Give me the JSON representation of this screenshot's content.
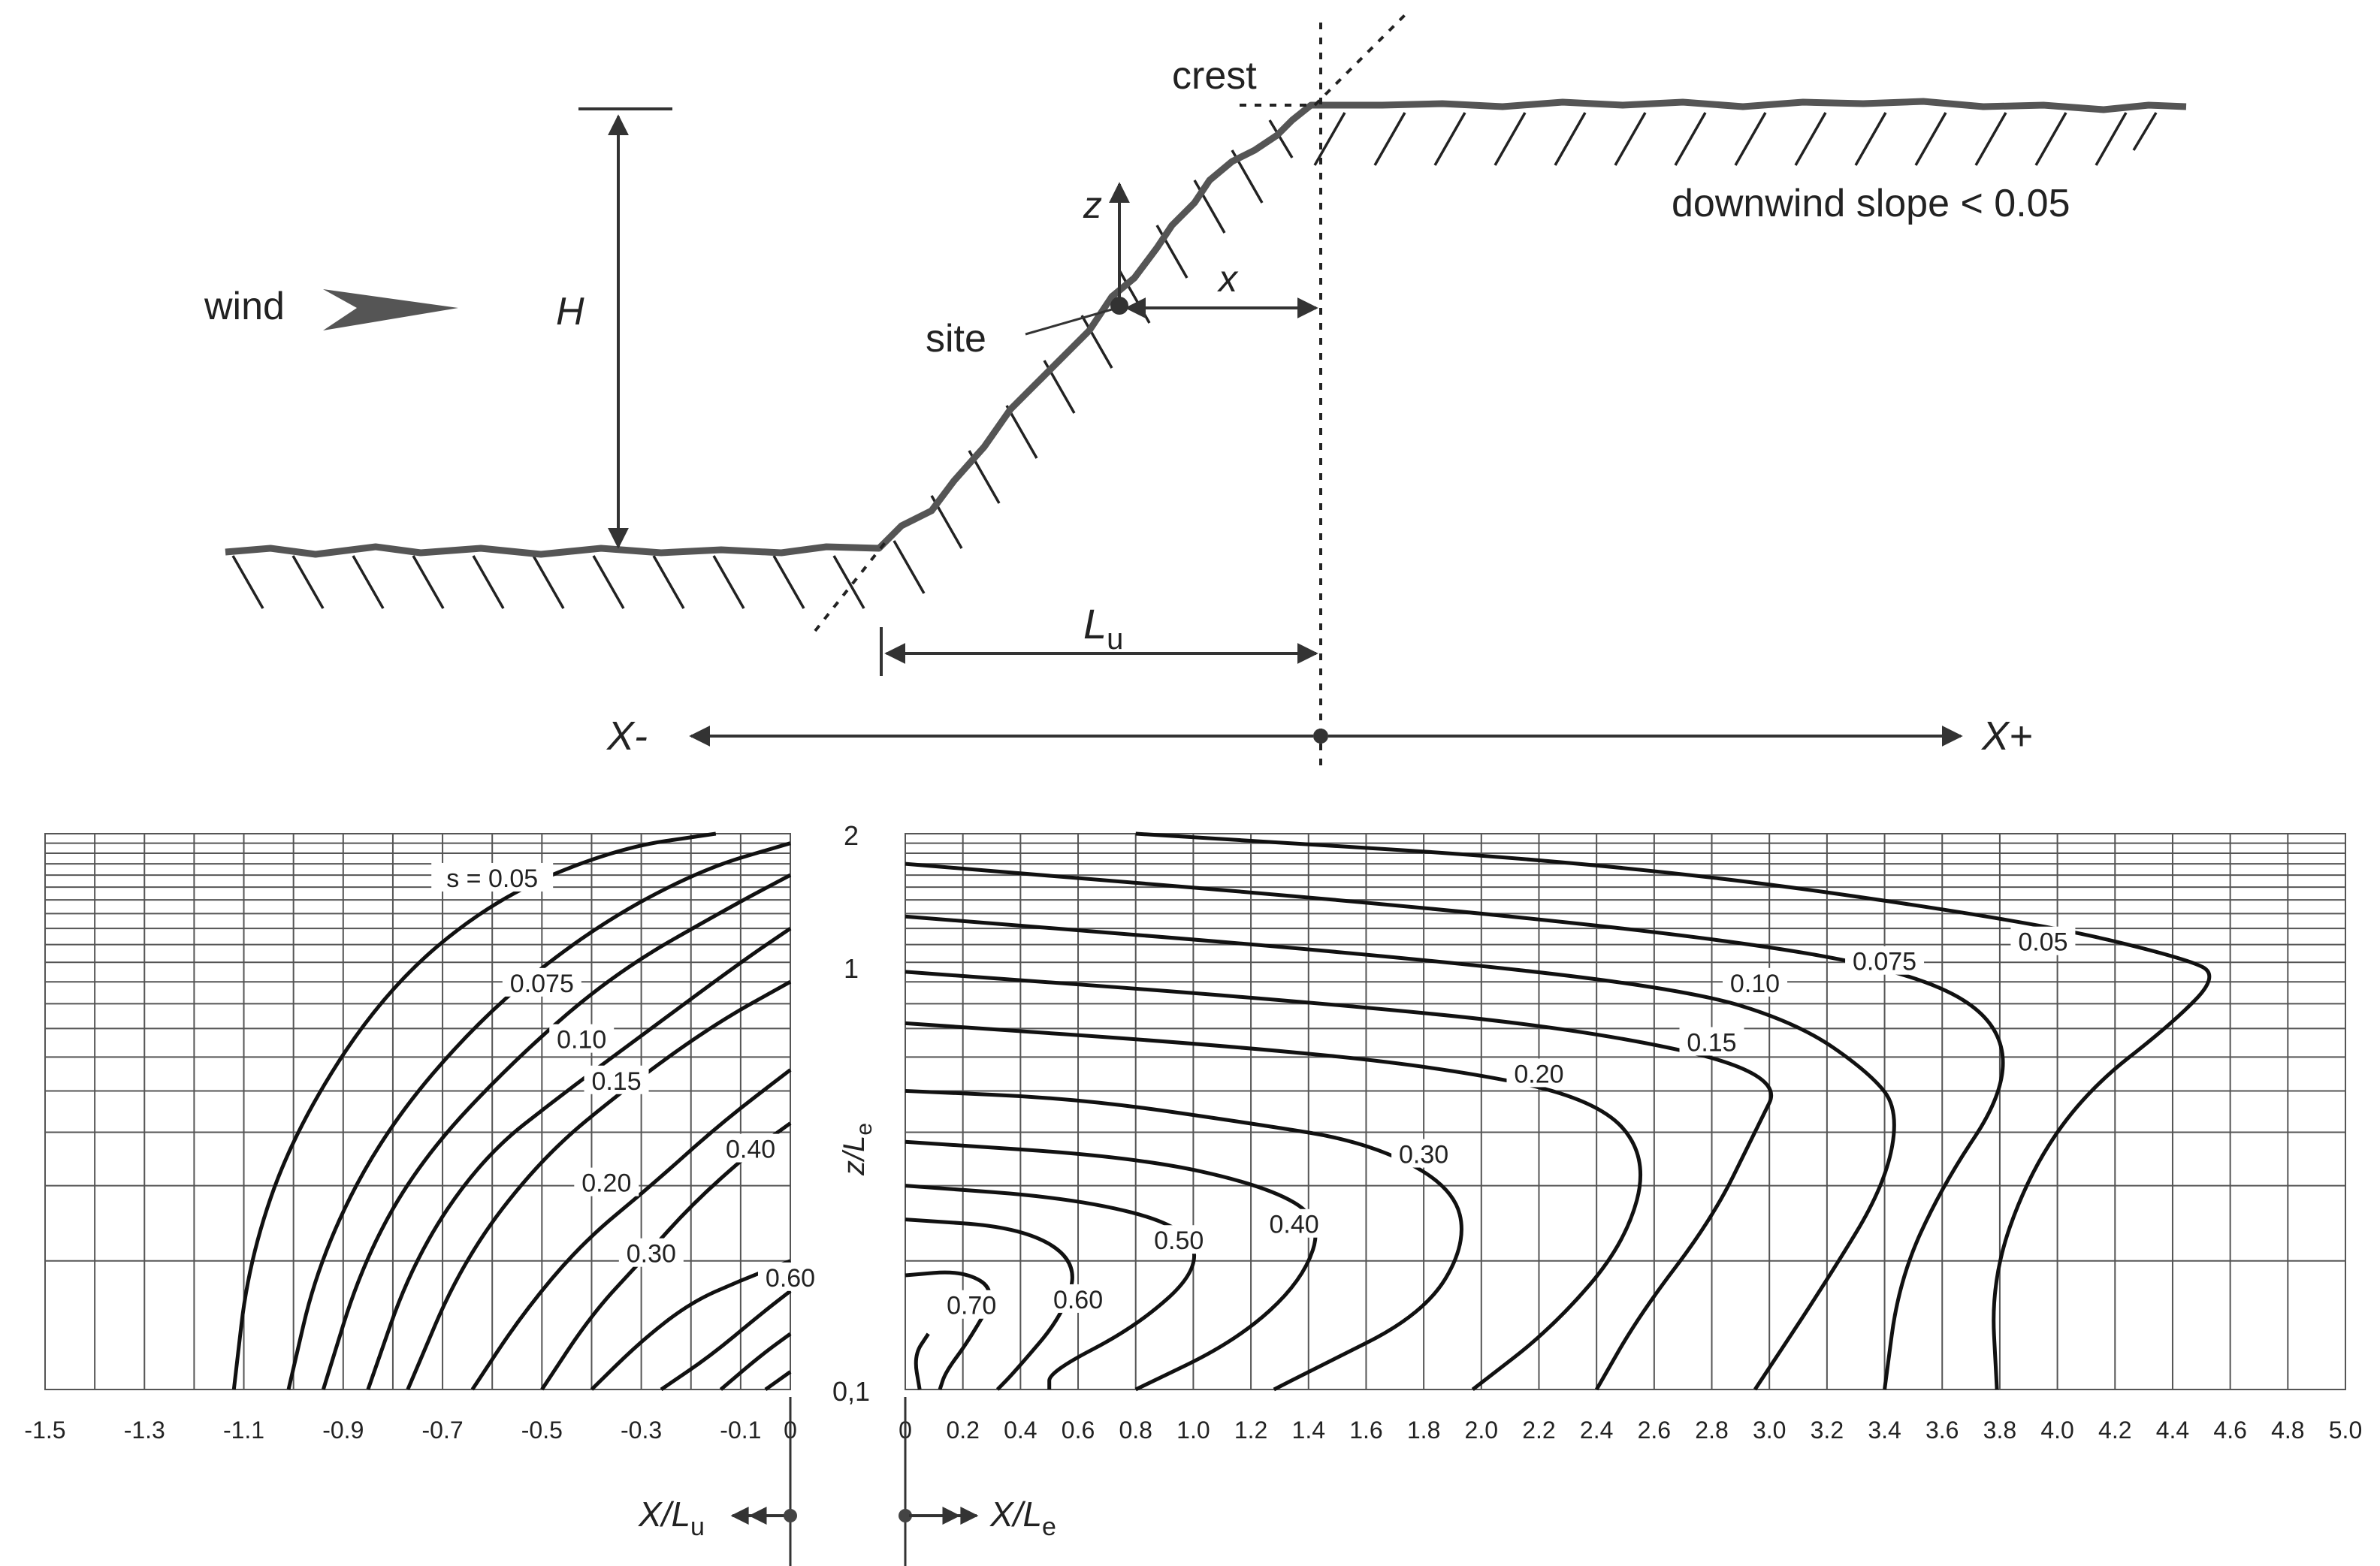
{
  "diagram": {
    "labels": {
      "crest": "crest",
      "downwind": "downwind slope < 0.05",
      "wind": "wind",
      "H": "H",
      "z": "z",
      "x": "x",
      "site": "site",
      "Lu_main": "L",
      "Lu_sub": "u",
      "Xminus": "X-",
      "Xplus": "X+"
    }
  },
  "chart_data": [
    {
      "type": "line",
      "title": "",
      "xlabel_main": "X/L",
      "xlabel_sub": "u",
      "ylabel_main": "z/L",
      "ylabel_sub": "e",
      "xlim": [
        -1.5,
        0
      ],
      "ylim": [
        0.1,
        2
      ],
      "yscale": "log",
      "xticks": [
        "-1.5",
        "-1.3",
        "-1.1",
        "-0.9",
        "-0.7",
        "-0.5",
        "-0.3",
        "-0.1",
        "0"
      ],
      "yticks": [
        "2",
        "1",
        "0,1"
      ],
      "series": [
        {
          "label": "s = 0.05",
          "label_at": [
            -0.6,
            1.55
          ],
          "points": [
            [
              -1.12,
              0.1
            ],
            [
              -1.09,
              0.2
            ],
            [
              -1.0,
              0.4
            ],
            [
              -0.82,
              0.85
            ],
            [
              -0.6,
              1.4
            ],
            [
              -0.35,
              1.85
            ],
            [
              -0.15,
              2.0
            ]
          ]
        },
        {
          "label": "0.075",
          "label_at": [
            -0.5,
            0.88
          ],
          "points": [
            [
              -1.01,
              0.1
            ],
            [
              -0.95,
              0.2
            ],
            [
              -0.82,
              0.4
            ],
            [
              -0.62,
              0.75
            ],
            [
              -0.4,
              1.2
            ],
            [
              -0.18,
              1.65
            ],
            [
              0,
              1.9
            ]
          ]
        },
        {
          "label": "0.10",
          "label_at": [
            -0.42,
            0.65
          ],
          "points": [
            [
              -0.94,
              0.1
            ],
            [
              -0.86,
              0.2
            ],
            [
              -0.74,
              0.35
            ],
            [
              -0.55,
              0.6
            ],
            [
              -0.35,
              0.95
            ],
            [
              -0.12,
              1.35
            ],
            [
              0,
              1.6
            ]
          ]
        },
        {
          "label": "0.15",
          "label_at": [
            -0.35,
            0.52
          ],
          "points": [
            [
              -0.85,
              0.1
            ],
            [
              -0.76,
              0.2
            ],
            [
              -0.62,
              0.35
            ],
            [
              -0.45,
              0.5
            ],
            [
              -0.28,
              0.7
            ],
            [
              -0.1,
              1.0
            ],
            [
              0,
              1.2
            ]
          ]
        },
        {
          "label": "0.20",
          "label_at": [
            -0.37,
            0.3
          ],
          "points": [
            [
              -0.77,
              0.1
            ],
            [
              -0.66,
              0.2
            ],
            [
              -0.5,
              0.35
            ],
            [
              -0.32,
              0.52
            ],
            [
              -0.15,
              0.72
            ],
            [
              0,
              0.9
            ]
          ]
        },
        {
          "label": "0.30",
          "label_at": [
            -0.28,
            0.205
          ],
          "points": [
            [
              -0.64,
              0.1
            ],
            [
              -0.54,
              0.15
            ],
            [
              -0.42,
              0.22
            ],
            [
              -0.28,
              0.3
            ],
            [
              -0.14,
              0.42
            ],
            [
              0,
              0.56
            ]
          ]
        },
        {
          "label": "0.40",
          "label_at": [
            -0.08,
            0.36
          ],
          "points": [
            [
              -0.5,
              0.1
            ],
            [
              -0.4,
              0.15
            ],
            [
              -0.3,
              0.2
            ],
            [
              -0.2,
              0.27
            ],
            [
              -0.08,
              0.36
            ],
            [
              0,
              0.42
            ]
          ]
        },
        {
          "label": "0.60",
          "label_at": [
            0,
            0.18
          ],
          "points": [
            [
              -0.4,
              0.1
            ],
            [
              -0.3,
              0.13
            ],
            [
              -0.2,
              0.16
            ],
            [
              -0.1,
              0.18
            ],
            [
              0,
              0.2
            ]
          ]
        },
        {
          "label": "",
          "points": [
            [
              -0.26,
              0.1
            ],
            [
              -0.16,
              0.12
            ],
            [
              -0.06,
              0.15
            ],
            [
              0,
              0.17
            ]
          ]
        },
        {
          "label": "",
          "points": [
            [
              -0.14,
              0.1
            ],
            [
              -0.06,
              0.12
            ],
            [
              0,
              0.135
            ]
          ]
        },
        {
          "label": "",
          "points": [
            [
              -0.05,
              0.1
            ],
            [
              0,
              0.11
            ]
          ]
        }
      ]
    },
    {
      "type": "line",
      "title": "",
      "xlabel_main": "X/L",
      "xlabel_sub": "e",
      "xlim": [
        0,
        5.0
      ],
      "ylim": [
        0.1,
        2
      ],
      "yscale": "log",
      "xticks": [
        "0",
        "0.2",
        "0.4",
        "0.6",
        "0.8",
        "1.0",
        "1.2",
        "1.4",
        "1.6",
        "1.8",
        "2.0",
        "2.2",
        "2.4",
        "2.6",
        "2.8",
        "3.0",
        "3.2",
        "3.4",
        "3.6",
        "3.8",
        "4.0",
        "4.2",
        "4.4",
        "4.6",
        "4.8",
        "5.0"
      ],
      "series": [
        {
          "label": "0.05",
          "label_at": [
            3.95,
            1.1
          ],
          "points": [
            [
              0.8,
              2.0
            ],
            [
              2.5,
              1.7
            ],
            [
              3.9,
              1.25
            ],
            [
              4.45,
              1.02
            ],
            [
              4.56,
              0.93
            ],
            [
              4.4,
              0.72
            ],
            [
              4.1,
              0.5
            ],
            [
              3.9,
              0.32
            ],
            [
              3.77,
              0.18
            ],
            [
              3.79,
              0.1
            ]
          ]
        },
        {
          "label": "0.075",
          "label_at": [
            3.4,
            0.99
          ],
          "points": [
            [
              0,
              1.7
            ],
            [
              1.8,
              1.35
            ],
            [
              3.0,
              1.1
            ],
            [
              3.55,
              0.92
            ],
            [
              3.8,
              0.72
            ],
            [
              3.82,
              0.5
            ],
            [
              3.6,
              0.3
            ],
            [
              3.45,
              0.18
            ],
            [
              3.4,
              0.1
            ]
          ]
        },
        {
          "label": "0.10",
          "label_at": [
            2.95,
            0.88
          ],
          "points": [
            [
              0,
              1.28
            ],
            [
              1.6,
              1.05
            ],
            [
              2.7,
              0.87
            ],
            [
              3.1,
              0.72
            ],
            [
              3.35,
              0.55
            ],
            [
              3.45,
              0.45
            ],
            [
              3.4,
              0.3
            ],
            [
              3.2,
              0.18
            ],
            [
              2.95,
              0.1
            ]
          ]
        },
        {
          "label": "0.15",
          "label_at": [
            2.8,
            0.64
          ],
          "points": [
            [
              0,
              0.95
            ],
            [
              1.3,
              0.82
            ],
            [
              2.35,
              0.7
            ],
            [
              3.05,
              0.55
            ],
            [
              2.95,
              0.4
            ],
            [
              2.8,
              0.25
            ],
            [
              2.55,
              0.15
            ],
            [
              2.4,
              0.1
            ]
          ]
        },
        {
          "label": "0.20",
          "label_at": [
            2.2,
            0.54
          ],
          "points": [
            [
              0,
              0.72
            ],
            [
              1.1,
              0.64
            ],
            [
              1.85,
              0.57
            ],
            [
              2.4,
              0.48
            ],
            [
              2.58,
              0.35
            ],
            [
              2.5,
              0.22
            ],
            [
              2.25,
              0.14
            ],
            [
              1.97,
              0.1
            ]
          ]
        },
        {
          "label": "0.30",
          "label_at": [
            1.8,
            0.35
          ],
          "points": [
            [
              0,
              0.5
            ],
            [
              0.6,
              0.48
            ],
            [
              1.2,
              0.42
            ],
            [
              1.6,
              0.38
            ],
            [
              1.9,
              0.3
            ],
            [
              1.95,
              0.22
            ],
            [
              1.8,
              0.15
            ],
            [
              1.4,
              0.11
            ],
            [
              1.28,
              0.1
            ]
          ]
        },
        {
          "label": "0.40",
          "label_at": [
            1.35,
            0.24
          ],
          "points": [
            [
              0,
              0.38
            ],
            [
              0.8,
              0.35
            ],
            [
              1.25,
              0.3
            ],
            [
              1.45,
              0.25
            ],
            [
              1.38,
              0.18
            ],
            [
              1.15,
              0.13
            ],
            [
              0.8,
              0.1
            ]
          ]
        },
        {
          "label": "0.50",
          "label_at": [
            0.95,
            0.22
          ],
          "points": [
            [
              0,
              0.3
            ],
            [
              0.6,
              0.28
            ],
            [
              0.98,
              0.24
            ],
            [
              1.02,
              0.19
            ],
            [
              0.8,
              0.14
            ],
            [
              0.5,
              0.11
            ],
            [
              0.5,
              0.1
            ]
          ]
        },
        {
          "label": "0.60",
          "label_at": [
            0.6,
            0.16
          ],
          "points": [
            [
              0,
              0.25
            ],
            [
              0.4,
              0.24
            ],
            [
              0.6,
              0.2
            ],
            [
              0.55,
              0.15
            ],
            [
              0.38,
              0.11
            ],
            [
              0.32,
              0.1
            ]
          ]
        },
        {
          "label": "0.70",
          "label_at": [
            0.23,
            0.155
          ],
          "points": [
            [
              0,
              0.185
            ],
            [
              0.2,
              0.19
            ],
            [
              0.32,
              0.17
            ],
            [
              0.22,
              0.13
            ],
            [
              0.14,
              0.11
            ],
            [
              0.12,
              0.1
            ]
          ]
        },
        {
          "label": "",
          "points": [
            [
              0.05,
              0.1
            ],
            [
              0.03,
              0.12
            ],
            [
              0.08,
              0.135
            ]
          ]
        }
      ]
    }
  ]
}
